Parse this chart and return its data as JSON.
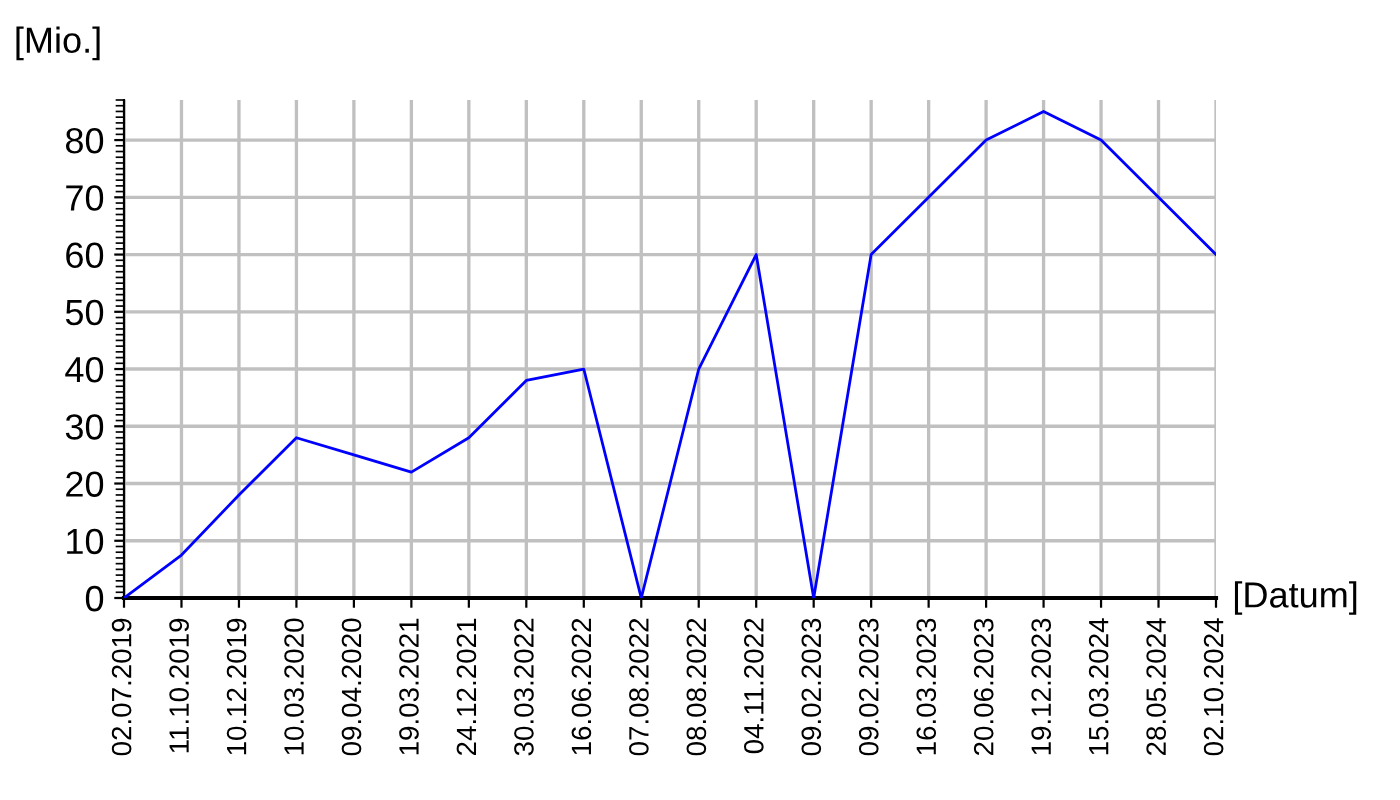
{
  "chart_data": {
    "type": "line",
    "xlabel": "[Datum]",
    "ylabel": "[Mio.]",
    "categories": [
      "02.07.2019",
      "11.10.2019",
      "10.12.2019",
      "10.03.2020",
      "09.04.2020",
      "19.03.2021",
      "24.12.2021",
      "30.03.2022",
      "16.06.2022",
      "07.08.2022",
      "08.08.2022",
      "04.11.2022",
      "09.02.2023",
      "09.02.2023",
      "16.03.2023",
      "20.06.2023",
      "19.12.2023",
      "15.03.2024",
      "28.05.2024",
      "02.10.2024"
    ],
    "series": [
      {
        "color": "#0000ff",
        "values": [
          0,
          7.5,
          18,
          28,
          25,
          22,
          28,
          38,
          40,
          0,
          40,
          60,
          0,
          60,
          70,
          80,
          85,
          80,
          70,
          60
        ]
      }
    ],
    "ylim": [
      0,
      87
    ],
    "yticks": [
      0,
      10,
      20,
      30,
      40,
      50,
      60,
      70,
      80
    ],
    "grid": true,
    "legend": false,
    "marker": "none",
    "line_style": "solid"
  }
}
